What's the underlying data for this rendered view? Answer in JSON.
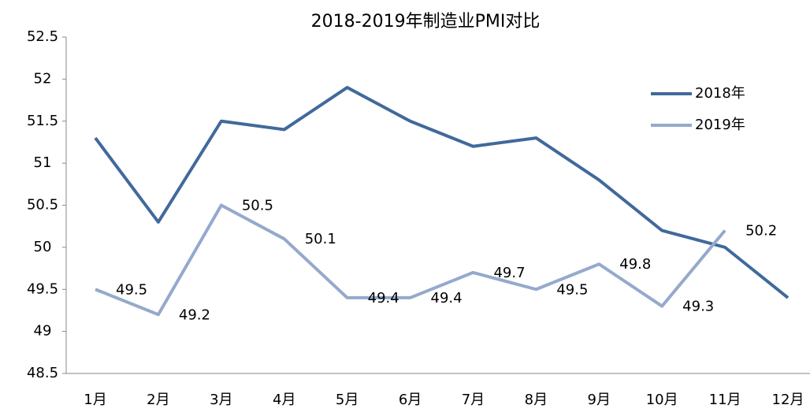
{
  "chart_data": {
    "type": "line",
    "title": "2018-2019年制造业PMI对比",
    "categories": [
      "1月",
      "2月",
      "3月",
      "4月",
      "5月",
      "6月",
      "7月",
      "8月",
      "9月",
      "10月",
      "11月",
      "12月"
    ],
    "series": [
      {
        "name": "2018年",
        "color": "#41699b",
        "show_labels": false,
        "values": [
          51.3,
          50.3,
          51.5,
          51.4,
          51.9,
          51.5,
          51.2,
          51.3,
          50.8,
          50.2,
          50.0,
          49.4
        ]
      },
      {
        "name": "2019年",
        "color": "#95a9cc",
        "show_labels": true,
        "values": [
          49.5,
          49.2,
          50.5,
          50.1,
          49.4,
          49.4,
          49.7,
          49.5,
          49.8,
          49.3,
          50.2,
          null
        ]
      }
    ],
    "ylim": [
      48.5,
      52.5
    ],
    "yticks": [
      48.5,
      49,
      49.5,
      50,
      50.5,
      51,
      51.5,
      52,
      52.5
    ],
    "grid": false,
    "legend": "upper-right"
  }
}
